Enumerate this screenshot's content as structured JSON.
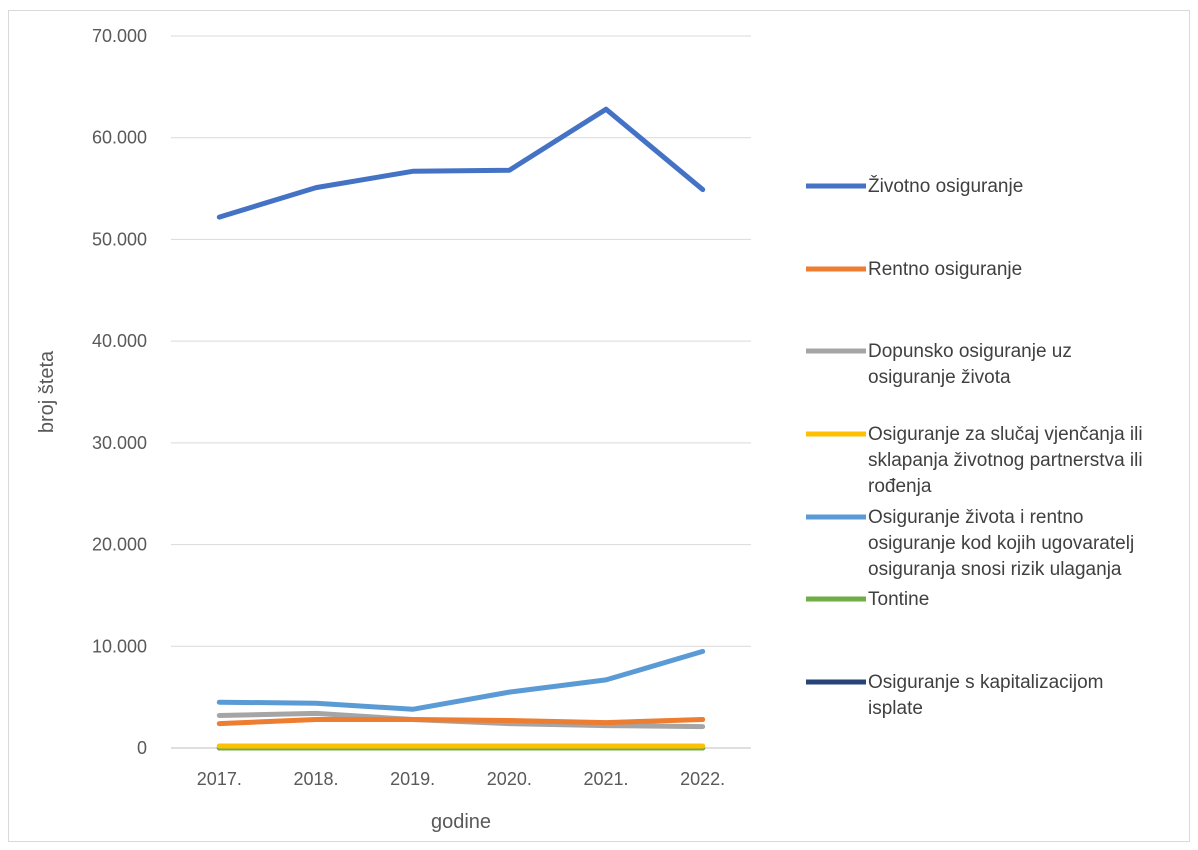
{
  "chart_data": {
    "type": "line",
    "title": "",
    "xlabel": "godine",
    "ylabel": "broj šteta",
    "categories": [
      "2017.",
      "2018.",
      "2019.",
      "2020.",
      "2021.",
      "2022."
    ],
    "ylim": [
      0,
      70000
    ],
    "y_ticks": [
      {
        "value": 0,
        "label": "0"
      },
      {
        "value": 10000,
        "label": "10.000"
      },
      {
        "value": 20000,
        "label": "20.000"
      },
      {
        "value": 30000,
        "label": "30.000"
      },
      {
        "value": 40000,
        "label": "40.000"
      },
      {
        "value": 50000,
        "label": "50.000"
      },
      {
        "value": 60000,
        "label": "60.000"
      },
      {
        "value": 70000,
        "label": "70.000"
      }
    ],
    "grid": true,
    "legend_position": "right",
    "series": [
      {
        "name": "Životno osiguranje",
        "color": "#4472C4",
        "values": [
          52200,
          55100,
          56700,
          56800,
          62800,
          54900
        ]
      },
      {
        "name": "Rentno osiguranje",
        "color": "#ED7D31",
        "values": [
          2400,
          2800,
          2800,
          2700,
          2500,
          2800
        ]
      },
      {
        "name": "Dopunsko osiguranje uz osiguranje života",
        "color": "#A5A5A5",
        "values": [
          3200,
          3400,
          2800,
          2400,
          2200,
          2100
        ]
      },
      {
        "name": "Osiguranje za slučaj vjenčanja ili sklapanja životnog partnerstva ili rođenja",
        "color": "#FFC000",
        "values": [
          200,
          200,
          200,
          200,
          200,
          200
        ]
      },
      {
        "name": "Osiguranje života i rentno osiguranje kod kojih ugovaratelj osiguranja snosi rizik ulaganja",
        "color": "#5B9BD5",
        "values": [
          4500,
          4400,
          3800,
          5500,
          6700,
          9500
        ]
      },
      {
        "name": "Tontine",
        "color": "#70AD47",
        "values": [
          0,
          0,
          0,
          0,
          0,
          0
        ]
      },
      {
        "name": "Osiguranje s kapitalizacijom isplate",
        "color": "#264478",
        "values": [
          0,
          0,
          0,
          0,
          0,
          0
        ]
      }
    ]
  }
}
